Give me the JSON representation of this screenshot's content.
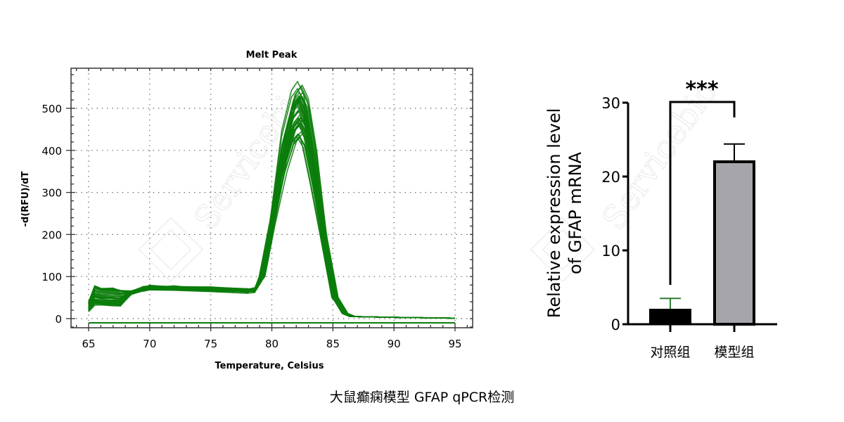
{
  "caption": "大鼠癫痫模型 GFAP qPCR检测",
  "watermark": "Servicebio",
  "chart_data": [
    {
      "type": "line",
      "title": "Melt Peak",
      "xlabel": "Temperature, Celsius",
      "ylabel": "-d(RFU)/dT",
      "xlim": [
        64,
        96
      ],
      "ylim": [
        -20,
        590
      ],
      "x_ticks": [
        65,
        70,
        75,
        80,
        85,
        90,
        95
      ],
      "y_ticks": [
        0,
        100,
        200,
        300,
        400,
        500
      ],
      "grid": true,
      "grid_style": "dotted",
      "series_color": "#0b7d0b",
      "n_curves_approx": 40,
      "representative_curve": {
        "x": [
          65,
          65.5,
          66,
          67,
          67.6,
          68.5,
          69.5,
          70,
          72,
          75,
          78,
          78.6,
          79.2,
          80,
          81,
          81.8,
          82.3,
          82.8,
          83.5,
          84.3,
          85.2,
          86,
          86.6,
          88,
          90,
          95
        ],
        "y": [
          30,
          60,
          55,
          55,
          52,
          65,
          75,
          78,
          77,
          74,
          70,
          72,
          100,
          220,
          420,
          510,
          530,
          500,
          380,
          190,
          50,
          12,
          5,
          4,
          3,
          1
        ]
      },
      "peak_temperature": 82.3,
      "peak_range": [
        430,
        565
      ],
      "baseline_curve": {
        "x": [
          65,
          95
        ],
        "y": [
          -10,
          -10
        ]
      }
    },
    {
      "type": "bar",
      "ylabel": "Relative expression level of GFAP mRNA",
      "ylabel_lines": [
        "Relative expression level",
        "of GFAP mRNA"
      ],
      "categories": [
        "对照组",
        "模型组"
      ],
      "values": [
        2.0,
        22.0
      ],
      "errors": [
        1.5,
        2.4
      ],
      "bar_colors": [
        "#000000",
        "#a5a5aa"
      ],
      "error_colors": [
        "#2e7d2e",
        "#000000"
      ],
      "ylim": [
        0,
        30
      ],
      "y_ticks": [
        0,
        10,
        20,
        30
      ],
      "significance": "***"
    }
  ]
}
